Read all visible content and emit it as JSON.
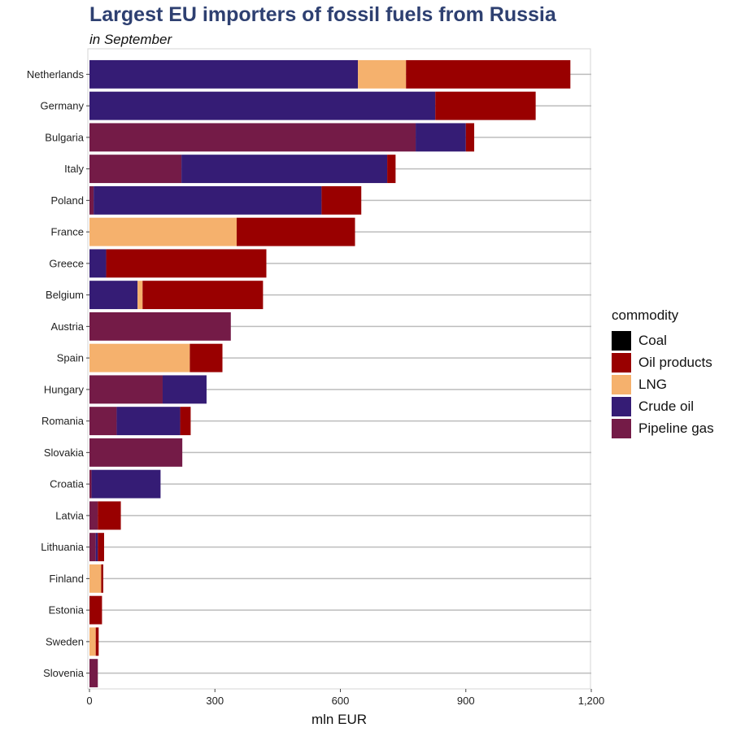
{
  "chart_data": {
    "type": "bar",
    "orientation": "horizontal",
    "stacked": true,
    "title": "Largest EU importers of fossil fuels from Russia",
    "subtitle": "in September",
    "xlabel": "mln EUR",
    "ylabel": "",
    "xlim": [
      0,
      1200
    ],
    "x_ticks": [
      0,
      300,
      600,
      900,
      1200
    ],
    "x_tick_labels": [
      "0",
      "300",
      "600",
      "900",
      "1,200"
    ],
    "grid": "horizontal lines",
    "legend": {
      "title": "commodity",
      "placement": "right"
    },
    "categories": [
      "Netherlands",
      "Germany",
      "Bulgaria",
      "Italy",
      "Poland",
      "France",
      "Greece",
      "Belgium",
      "Austria",
      "Spain",
      "Hungary",
      "Romania",
      "Slovakia",
      "Croatia",
      "Latvia",
      "Lithuania",
      "Finland",
      "Estonia",
      "Sweden",
      "Slovenia"
    ],
    "series": [
      {
        "name": "Pipeline gas",
        "color": "#741b47",
        "values": [
          0,
          0,
          780,
          220,
          10,
          0,
          0,
          0,
          338,
          0,
          175,
          65,
          222,
          5,
          20,
          15,
          0,
          0,
          0,
          20
        ]
      },
      {
        "name": "Crude oil",
        "color": "#351c75",
        "values": [
          642,
          827,
          120,
          492,
          545,
          0,
          40,
          115,
          0,
          0,
          105,
          152,
          0,
          165,
          0,
          5,
          0,
          0,
          0,
          0
        ]
      },
      {
        "name": "LNG",
        "color": "#f5b16d",
        "values": [
          115,
          0,
          0,
          0,
          0,
          352,
          0,
          12,
          0,
          240,
          0,
          0,
          0,
          0,
          0,
          0,
          28,
          0,
          15,
          0
        ]
      },
      {
        "name": "Oil products",
        "color": "#990000",
        "values": [
          393,
          240,
          20,
          20,
          95,
          283,
          383,
          288,
          0,
          78,
          0,
          25,
          0,
          0,
          55,
          15,
          5,
          30,
          7,
          0
        ]
      },
      {
        "name": "Coal",
        "color": "#000000",
        "values": [
          0,
          0,
          0,
          0,
          0,
          0,
          0,
          0,
          0,
          0,
          0,
          0,
          0,
          0,
          0,
          0,
          0,
          0,
          0,
          0
        ]
      }
    ],
    "legend_order": [
      "Coal",
      "Oil products",
      "LNG",
      "Crude oil",
      "Pipeline gas"
    ]
  }
}
